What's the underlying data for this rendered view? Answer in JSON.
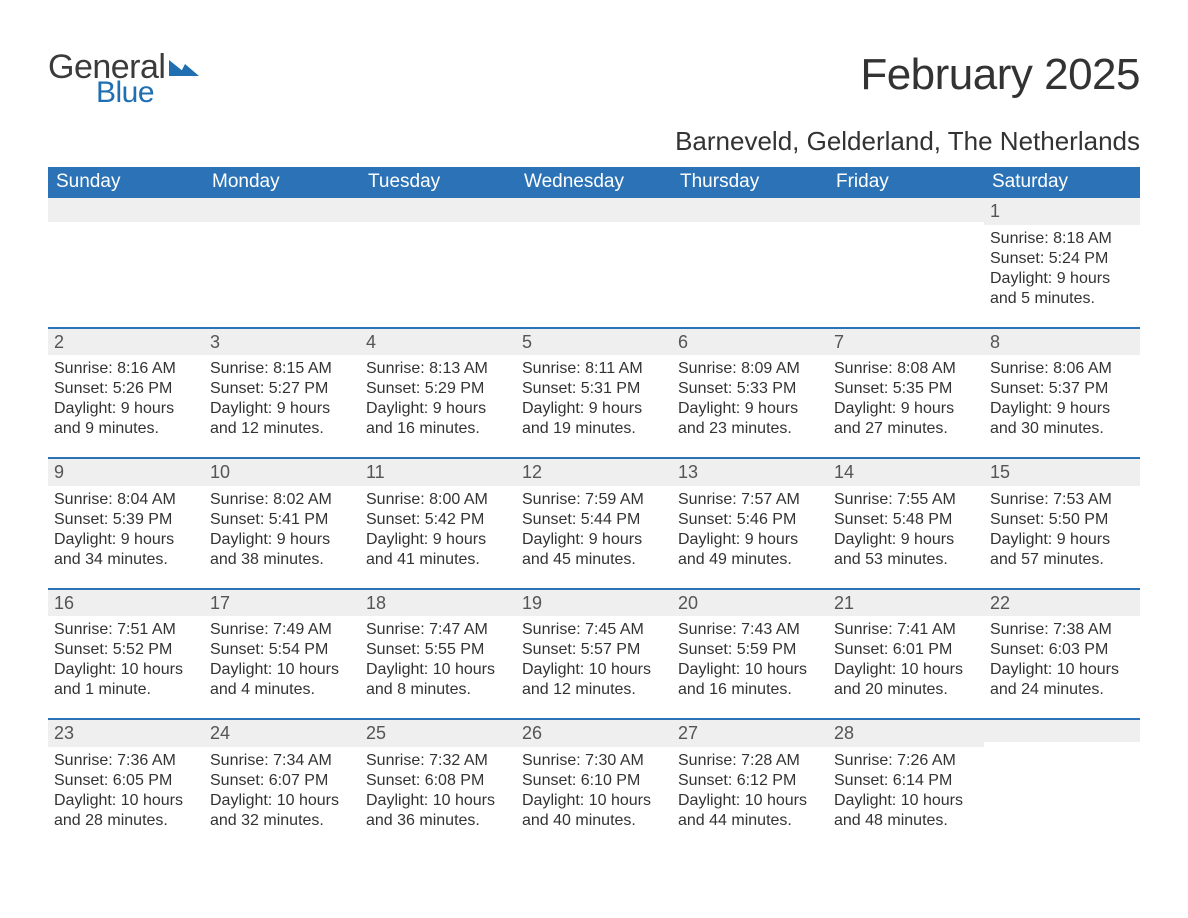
{
  "logo": {
    "text_general": "General",
    "text_blue": "Blue",
    "icon_color": "#1f6fb2"
  },
  "title": "February 2025",
  "location": "Barneveld, Gelderland, The Netherlands",
  "colors": {
    "header_bg": "#2b73b6",
    "header_text": "#ffffff",
    "daynum_bg": "#efefef",
    "daynum_border": "#2b73b6",
    "body_text": "#333333",
    "page_bg": "#ffffff"
  },
  "day_headers": [
    "Sunday",
    "Monday",
    "Tuesday",
    "Wednesday",
    "Thursday",
    "Friday",
    "Saturday"
  ],
  "weeks": [
    [
      {
        "day": "",
        "sunrise": "",
        "sunset": "",
        "daylight": ""
      },
      {
        "day": "",
        "sunrise": "",
        "sunset": "",
        "daylight": ""
      },
      {
        "day": "",
        "sunrise": "",
        "sunset": "",
        "daylight": ""
      },
      {
        "day": "",
        "sunrise": "",
        "sunset": "",
        "daylight": ""
      },
      {
        "day": "",
        "sunrise": "",
        "sunset": "",
        "daylight": ""
      },
      {
        "day": "",
        "sunrise": "",
        "sunset": "",
        "daylight": ""
      },
      {
        "day": "1",
        "sunrise": "Sunrise: 8:18 AM",
        "sunset": "Sunset: 5:24 PM",
        "daylight": "Daylight: 9 hours and 5 minutes."
      }
    ],
    [
      {
        "day": "2",
        "sunrise": "Sunrise: 8:16 AM",
        "sunset": "Sunset: 5:26 PM",
        "daylight": "Daylight: 9 hours and 9 minutes."
      },
      {
        "day": "3",
        "sunrise": "Sunrise: 8:15 AM",
        "sunset": "Sunset: 5:27 PM",
        "daylight": "Daylight: 9 hours and 12 minutes."
      },
      {
        "day": "4",
        "sunrise": "Sunrise: 8:13 AM",
        "sunset": "Sunset: 5:29 PM",
        "daylight": "Daylight: 9 hours and 16 minutes."
      },
      {
        "day": "5",
        "sunrise": "Sunrise: 8:11 AM",
        "sunset": "Sunset: 5:31 PM",
        "daylight": "Daylight: 9 hours and 19 minutes."
      },
      {
        "day": "6",
        "sunrise": "Sunrise: 8:09 AM",
        "sunset": "Sunset: 5:33 PM",
        "daylight": "Daylight: 9 hours and 23 minutes."
      },
      {
        "day": "7",
        "sunrise": "Sunrise: 8:08 AM",
        "sunset": "Sunset: 5:35 PM",
        "daylight": "Daylight: 9 hours and 27 minutes."
      },
      {
        "day": "8",
        "sunrise": "Sunrise: 8:06 AM",
        "sunset": "Sunset: 5:37 PM",
        "daylight": "Daylight: 9 hours and 30 minutes."
      }
    ],
    [
      {
        "day": "9",
        "sunrise": "Sunrise: 8:04 AM",
        "sunset": "Sunset: 5:39 PM",
        "daylight": "Daylight: 9 hours and 34 minutes."
      },
      {
        "day": "10",
        "sunrise": "Sunrise: 8:02 AM",
        "sunset": "Sunset: 5:41 PM",
        "daylight": "Daylight: 9 hours and 38 minutes."
      },
      {
        "day": "11",
        "sunrise": "Sunrise: 8:00 AM",
        "sunset": "Sunset: 5:42 PM",
        "daylight": "Daylight: 9 hours and 41 minutes."
      },
      {
        "day": "12",
        "sunrise": "Sunrise: 7:59 AM",
        "sunset": "Sunset: 5:44 PM",
        "daylight": "Daylight: 9 hours and 45 minutes."
      },
      {
        "day": "13",
        "sunrise": "Sunrise: 7:57 AM",
        "sunset": "Sunset: 5:46 PM",
        "daylight": "Daylight: 9 hours and 49 minutes."
      },
      {
        "day": "14",
        "sunrise": "Sunrise: 7:55 AM",
        "sunset": "Sunset: 5:48 PM",
        "daylight": "Daylight: 9 hours and 53 minutes."
      },
      {
        "day": "15",
        "sunrise": "Sunrise: 7:53 AM",
        "sunset": "Sunset: 5:50 PM",
        "daylight": "Daylight: 9 hours and 57 minutes."
      }
    ],
    [
      {
        "day": "16",
        "sunrise": "Sunrise: 7:51 AM",
        "sunset": "Sunset: 5:52 PM",
        "daylight": "Daylight: 10 hours and 1 minute."
      },
      {
        "day": "17",
        "sunrise": "Sunrise: 7:49 AM",
        "sunset": "Sunset: 5:54 PM",
        "daylight": "Daylight: 10 hours and 4 minutes."
      },
      {
        "day": "18",
        "sunrise": "Sunrise: 7:47 AM",
        "sunset": "Sunset: 5:55 PM",
        "daylight": "Daylight: 10 hours and 8 minutes."
      },
      {
        "day": "19",
        "sunrise": "Sunrise: 7:45 AM",
        "sunset": "Sunset: 5:57 PM",
        "daylight": "Daylight: 10 hours and 12 minutes."
      },
      {
        "day": "20",
        "sunrise": "Sunrise: 7:43 AM",
        "sunset": "Sunset: 5:59 PM",
        "daylight": "Daylight: 10 hours and 16 minutes."
      },
      {
        "day": "21",
        "sunrise": "Sunrise: 7:41 AM",
        "sunset": "Sunset: 6:01 PM",
        "daylight": "Daylight: 10 hours and 20 minutes."
      },
      {
        "day": "22",
        "sunrise": "Sunrise: 7:38 AM",
        "sunset": "Sunset: 6:03 PM",
        "daylight": "Daylight: 10 hours and 24 minutes."
      }
    ],
    [
      {
        "day": "23",
        "sunrise": "Sunrise: 7:36 AM",
        "sunset": "Sunset: 6:05 PM",
        "daylight": "Daylight: 10 hours and 28 minutes."
      },
      {
        "day": "24",
        "sunrise": "Sunrise: 7:34 AM",
        "sunset": "Sunset: 6:07 PM",
        "daylight": "Daylight: 10 hours and 32 minutes."
      },
      {
        "day": "25",
        "sunrise": "Sunrise: 7:32 AM",
        "sunset": "Sunset: 6:08 PM",
        "daylight": "Daylight: 10 hours and 36 minutes."
      },
      {
        "day": "26",
        "sunrise": "Sunrise: 7:30 AM",
        "sunset": "Sunset: 6:10 PM",
        "daylight": "Daylight: 10 hours and 40 minutes."
      },
      {
        "day": "27",
        "sunrise": "Sunrise: 7:28 AM",
        "sunset": "Sunset: 6:12 PM",
        "daylight": "Daylight: 10 hours and 44 minutes."
      },
      {
        "day": "28",
        "sunrise": "Sunrise: 7:26 AM",
        "sunset": "Sunset: 6:14 PM",
        "daylight": "Daylight: 10 hours and 48 minutes."
      },
      {
        "day": "",
        "sunrise": "",
        "sunset": "",
        "daylight": ""
      }
    ]
  ]
}
